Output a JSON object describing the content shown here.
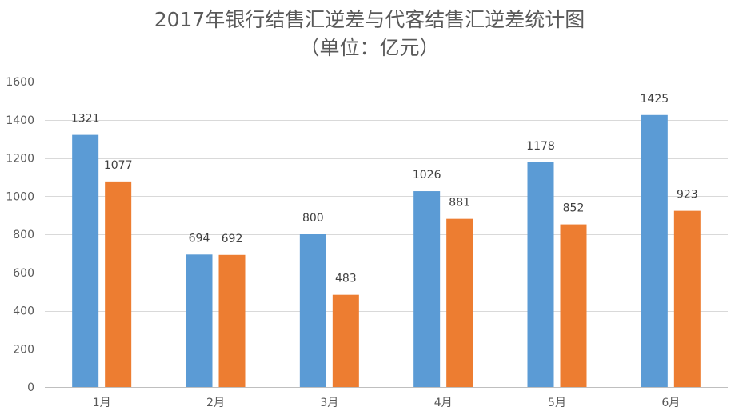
{
  "chart_data": {
    "type": "bar",
    "title": "2017年银行结售汇逆差与代客结售汇逆差统计图",
    "subtitle": "（单位：亿元）",
    "categories": [
      "1月",
      "2月",
      "3月",
      "4月",
      "5月",
      "6月"
    ],
    "series": [
      {
        "color": "#5B9BD5",
        "values": [
          1321,
          694,
          800,
          1026,
          1178,
          1425
        ]
      },
      {
        "color": "#ED7D31",
        "values": [
          1077,
          692,
          483,
          881,
          852,
          923
        ]
      }
    ],
    "ylim": [
      0,
      1600
    ],
    "yticks": [
      0,
      200,
      400,
      600,
      800,
      1000,
      1200,
      1400,
      1600
    ],
    "grid": true,
    "gridColor": "#d9d9d9",
    "axisColor": "#bfbfbf",
    "data_labels": true
  }
}
